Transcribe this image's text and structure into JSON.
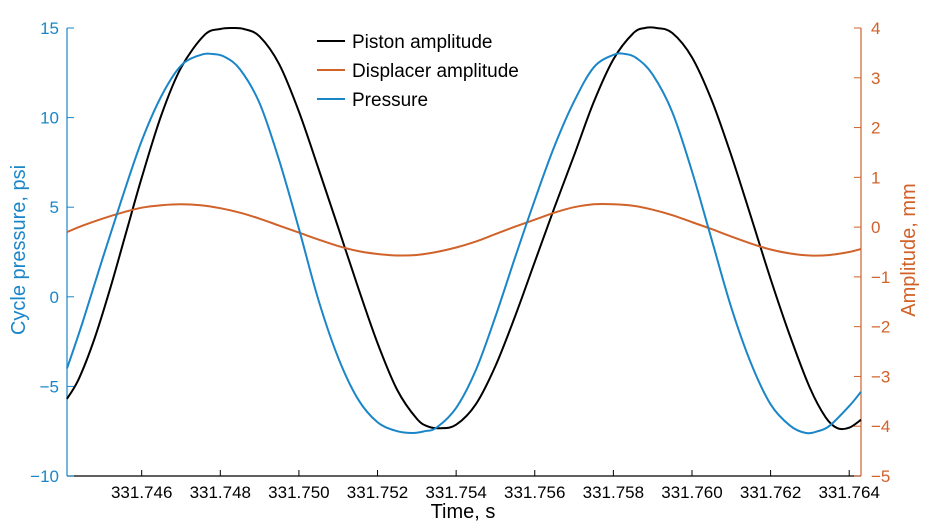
{
  "chart_data": {
    "type": "line",
    "xlabel": "Time, s",
    "y_left_label": "Cycle pressure, psi",
    "y_right_label": "Amplitude, mm",
    "xlim": [
      331.7441,
      331.7643
    ],
    "y_left_lim": [
      -10,
      15
    ],
    "y_right_lim": [
      -5,
      4
    ],
    "x_ticks": [
      "331.746",
      "331.748",
      "331.750",
      "331.752",
      "331.754",
      "331.756",
      "331.758",
      "331.760",
      "331.762",
      "331.764"
    ],
    "x_tick_values": [
      331.746,
      331.748,
      331.75,
      331.752,
      331.754,
      331.756,
      331.758,
      331.76,
      331.762,
      331.764
    ],
    "y_left_ticks": [
      "15",
      "10",
      "5",
      "0",
      "−5",
      "−10"
    ],
    "y_left_tick_values": [
      15,
      10,
      5,
      0,
      -5,
      -10
    ],
    "y_right_ticks": [
      "4",
      "3",
      "2",
      "1",
      "0",
      "−1",
      "−2",
      "−3",
      "−4",
      "−5"
    ],
    "y_right_tick_values": [
      4,
      3,
      2,
      1,
      0,
      -1,
      -2,
      -3,
      -4,
      -5
    ],
    "grid": false,
    "legend_position": "top-center",
    "colors": {
      "left_axis": "#1a86c8",
      "right_axis": "#d0622a",
      "piston": "#000000",
      "displacer": "#d0622a",
      "pressure": "#1a86c8"
    },
    "series": [
      {
        "name": "Piston amplitude",
        "axis": "right",
        "color": "#000000",
        "x": [
          331.7441,
          331.7444,
          331.7448,
          331.7452,
          331.7456,
          331.746,
          331.7465,
          331.747,
          331.7476,
          331.748,
          331.7483,
          331.7486,
          331.749,
          331.7495,
          331.75,
          331.7505,
          331.751,
          331.7515,
          331.752,
          331.7525,
          331.753,
          331.7533,
          331.7536,
          331.754,
          331.7545,
          331.755,
          331.7555,
          331.756,
          331.7565,
          331.757,
          331.7575,
          331.758,
          331.7585,
          331.7588,
          331.7591,
          331.7595,
          331.76,
          331.7605,
          331.761,
          331.7615,
          331.762,
          331.7625,
          331.763,
          331.7634,
          331.7637,
          331.764,
          331.7643
        ],
        "y": [
          -3.45,
          -3.05,
          -2.24,
          -1.23,
          -0.12,
          0.99,
          2.25,
          3.2,
          3.86,
          3.98,
          4.0,
          3.98,
          3.83,
          3.27,
          2.32,
          1.17,
          -0.01,
          -1.2,
          -2.33,
          -3.27,
          -3.85,
          -4.01,
          -4.04,
          -3.97,
          -3.56,
          -2.79,
          -1.79,
          -0.7,
          0.39,
          1.44,
          2.51,
          3.37,
          3.89,
          4.0,
          4.0,
          3.9,
          3.41,
          2.55,
          1.44,
          0.21,
          -1.04,
          -2.2,
          -3.23,
          -3.82,
          -4.04,
          -4.03,
          -3.87
        ]
      },
      {
        "name": "Displacer amplitude",
        "axis": "right",
        "color": "#d0622a",
        "x": [
          331.7441,
          331.7445,
          331.745,
          331.7455,
          331.746,
          331.7465,
          331.747,
          331.7475,
          331.748,
          331.7485,
          331.749,
          331.7495,
          331.75,
          331.7505,
          331.751,
          331.7515,
          331.752,
          331.7525,
          331.753,
          331.7535,
          331.754,
          331.7545,
          331.755,
          331.7555,
          331.756,
          331.7565,
          331.757,
          331.7575,
          331.758,
          331.7585,
          331.759,
          331.7595,
          331.76,
          331.7605,
          331.761,
          331.7615,
          331.762,
          331.7625,
          331.763,
          331.7635,
          331.764,
          331.7643
        ],
        "y": [
          -0.1,
          0.03,
          0.17,
          0.29,
          0.39,
          0.44,
          0.46,
          0.44,
          0.38,
          0.29,
          0.17,
          0.03,
          -0.11,
          -0.25,
          -0.38,
          -0.48,
          -0.54,
          -0.57,
          -0.56,
          -0.5,
          -0.41,
          -0.29,
          -0.14,
          0.01,
          0.15,
          0.29,
          0.4,
          0.46,
          0.46,
          0.43,
          0.35,
          0.24,
          0.1,
          -0.04,
          -0.19,
          -0.33,
          -0.45,
          -0.53,
          -0.57,
          -0.56,
          -0.5,
          -0.44
        ]
      },
      {
        "name": "Pressure",
        "axis": "left",
        "color": "#1a86c8",
        "x": [
          331.7441,
          331.7445,
          331.745,
          331.7455,
          331.746,
          331.7465,
          331.747,
          331.7475,
          331.7478,
          331.7481,
          331.7485,
          331.749,
          331.7495,
          331.75,
          331.7505,
          331.751,
          331.7515,
          331.752,
          331.7525,
          331.7529,
          331.7532,
          331.7535,
          331.754,
          331.7545,
          331.755,
          331.7555,
          331.756,
          331.7565,
          331.757,
          331.7575,
          331.758,
          331.7583,
          331.7586,
          331.759,
          331.7595,
          331.76,
          331.7605,
          331.761,
          331.7615,
          331.762,
          331.7625,
          331.7629,
          331.7632,
          331.7635,
          331.764,
          331.7643
        ],
        "y": [
          -4.0,
          -1.4,
          2.1,
          5.5,
          8.7,
          11.2,
          12.9,
          13.5,
          13.55,
          13.4,
          12.7,
          10.8,
          7.6,
          3.8,
          -0.2,
          -3.4,
          -5.7,
          -7.0,
          -7.5,
          -7.6,
          -7.5,
          -7.3,
          -6.2,
          -4.1,
          -1.1,
          2.2,
          5.4,
          8.4,
          10.9,
          12.8,
          13.5,
          13.55,
          13.3,
          12.4,
          10.3,
          7.0,
          3.2,
          -0.6,
          -3.7,
          -6.0,
          -7.2,
          -7.6,
          -7.5,
          -7.2,
          -6.1,
          -5.3
        ]
      }
    ]
  }
}
